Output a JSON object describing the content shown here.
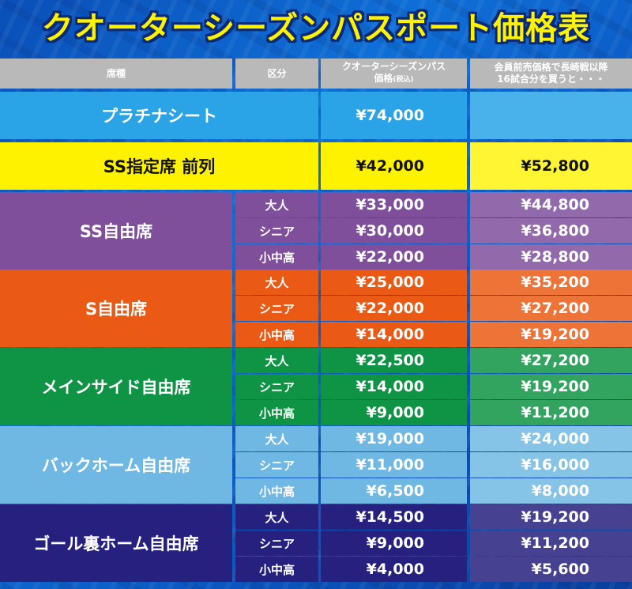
{
  "title": "クオーターシーズンパスポート価格表",
  "headers": {
    "seat": "席種",
    "category": "区分",
    "qpass_line1": "クオーターシーズンパス",
    "qpass_line2": "価格",
    "qpass_tax": "(税込)",
    "member_line1": "会員前売価格で長崎戦以降",
    "member_line2": "16試合分を買うと・・・"
  },
  "colors": {
    "platinum": "#2aa4e6",
    "ss_front": "#fff200",
    "ss_free": "#7f4f9b",
    "s_free": "#ea5a14",
    "mainside": "#0e9444",
    "backhome": "#6fb8e3",
    "goal": "#26207f"
  },
  "rows": [
    {
      "seat": "プラチナシート",
      "price": "¥74,000",
      "member": ""
    },
    {
      "seat": "SS指定席 前列",
      "price": "¥42,000",
      "member": "¥52,800"
    }
  ],
  "groups": [
    {
      "seat": "SS自由席",
      "items": [
        {
          "cat": "大人",
          "price": "¥33,000",
          "member": "¥44,800"
        },
        {
          "cat": "シニア",
          "price": "¥30,000",
          "member": "¥36,800"
        },
        {
          "cat": "小中高",
          "price": "¥22,000",
          "member": "¥28,800"
        }
      ]
    },
    {
      "seat": "S自由席",
      "items": [
        {
          "cat": "大人",
          "price": "¥25,000",
          "member": "¥35,200"
        },
        {
          "cat": "シニア",
          "price": "¥22,000",
          "member": "¥27,200"
        },
        {
          "cat": "小中高",
          "price": "¥14,000",
          "member": "¥19,200"
        }
      ]
    },
    {
      "seat": "メインサイド自由席",
      "items": [
        {
          "cat": "大人",
          "price": "¥22,500",
          "member": "¥27,200"
        },
        {
          "cat": "シニア",
          "price": "¥14,000",
          "member": "¥19,200"
        },
        {
          "cat": "小中高",
          "price": "¥9,000",
          "member": "¥11,200"
        }
      ]
    },
    {
      "seat": "バックホーム自由席",
      "items": [
        {
          "cat": "大人",
          "price": "¥19,000",
          "member": "¥24,000"
        },
        {
          "cat": "シニア",
          "price": "¥11,000",
          "member": "¥16,000"
        },
        {
          "cat": "小中高",
          "price": "¥6,500",
          "member": "¥8,000"
        }
      ]
    },
    {
      "seat": "ゴール裏ホーム自由席",
      "items": [
        {
          "cat": "大人",
          "price": "¥14,500",
          "member": "¥19,200"
        },
        {
          "cat": "シニア",
          "price": "¥9,000",
          "member": "¥11,200"
        },
        {
          "cat": "小中高",
          "price": "¥4,000",
          "member": "¥5,600"
        }
      ]
    }
  ]
}
